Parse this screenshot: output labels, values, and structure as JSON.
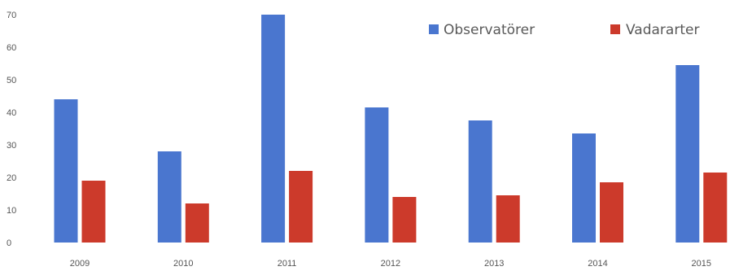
{
  "chart_data": {
    "type": "bar",
    "categories": [
      "2009",
      "2010",
      "2011",
      "2012",
      "2013",
      "2014",
      "2015"
    ],
    "series": [
      {
        "name": "Observatörer",
        "values": [
          44,
          28,
          70,
          41.5,
          37.5,
          33.5,
          54.5
        ],
        "color": "#4a76cf"
      },
      {
        "name": "Vadararter",
        "values": [
          19,
          12,
          22,
          14,
          14.5,
          18.5,
          21.5
        ],
        "color": "#cc3a2b"
      }
    ],
    "ylim": [
      0,
      70
    ],
    "yticks": [
      "0",
      "10",
      "20",
      "30",
      "40",
      "50",
      "60",
      "70"
    ],
    "grid": false,
    "legend_position": "top-right"
  }
}
